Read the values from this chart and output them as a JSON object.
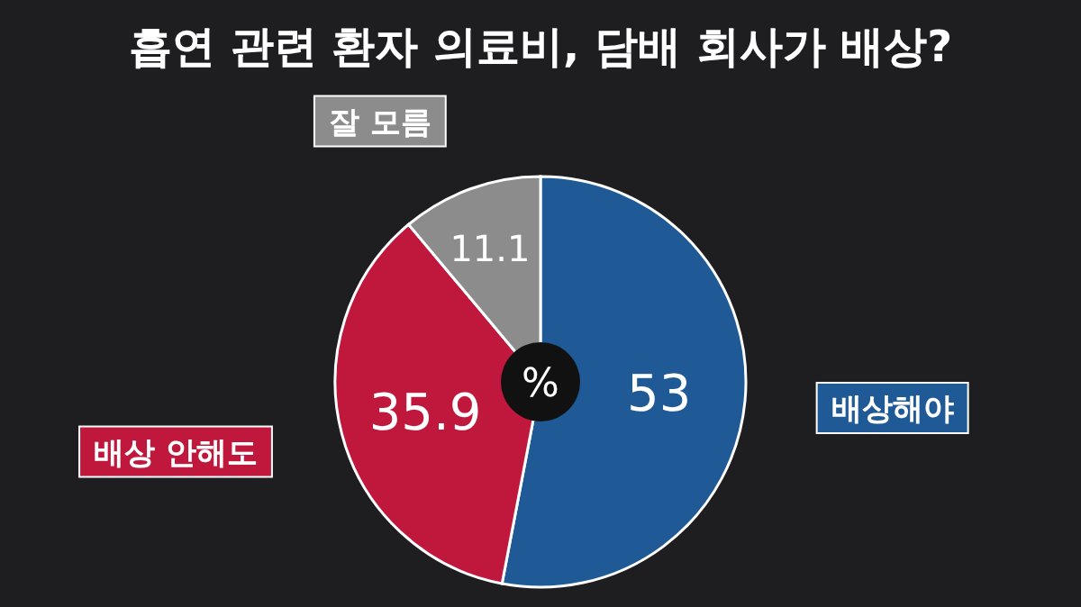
{
  "chart_data": {
    "type": "pie",
    "title": "흡연 관련 환자 의료비, 담배 회사가 배상?",
    "categories": [
      "배상해야",
      "배상 안해도",
      "잘 모름"
    ],
    "values": [
      53,
      35.9,
      11.1
    ],
    "colors": [
      "#1f5a96",
      "#c0183c",
      "#8c8c8c"
    ],
    "data_labels": true,
    "annotations": [
      "%"
    ]
  }
}
